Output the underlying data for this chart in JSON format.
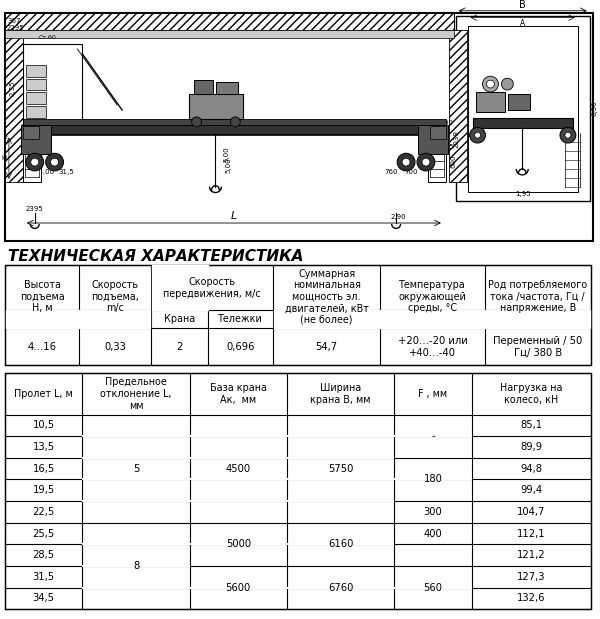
{
  "title": "ТЕХНИЧЕСКАЯ ХАРАКТЕРИСТИКА",
  "table1_headers_row1": [
    "Высота\nподъема\nН, м",
    "Скорость\nподъема,\nm/с",
    "Скорость\nпередвижения, м/с",
    "",
    "Суммарная\nноминальная\nмощность эл.\nдвигателей, кВт\n(не более)",
    "Температура\nокружающей\nсреды, °С",
    "Род потребляемого\nтока /частота, Гц /\nнапряжение, В"
  ],
  "table1_subheaders": [
    "Крана",
    "Тележки"
  ],
  "table1_data": [
    "4…16",
    "0,33",
    "2",
    "0,696",
    "54,7",
    "+20…-20 или\n+40…-40",
    "Переменный / 50\nГц/ 380 В"
  ],
  "table2_headers": [
    "Пролет L, м",
    "Предельное\nотклонение L,\nмм",
    "База крана\nАк,  мм",
    "Ширина\nкрана В, мм",
    "F , мм",
    "Нагрузка на\nколесо, кН"
  ],
  "prolety": [
    "10,5",
    "13,5",
    "16,5",
    "19,5",
    "22,5",
    "25,5",
    "28,5",
    "31,5",
    "34,5"
  ],
  "nagruzka": [
    "85,1",
    "89,9",
    "94,8",
    "99,4",
    "104,7",
    "112,1",
    "121,2",
    "127,3",
    "132,6"
  ],
  "predel_merge": [
    {
      "val": "5",
      "r0": 0,
      "r1": 4
    },
    {
      "val": "8",
      "r0": 5,
      "r1": 8
    }
  ],
  "baza_merge": [
    {
      "val": "4500",
      "r0": 0,
      "r1": 4
    },
    {
      "val": "5000",
      "r0": 5,
      "r1": 6
    },
    {
      "val": "5600",
      "r0": 7,
      "r1": 8
    }
  ],
  "shir_merge": [
    {
      "val": "5750",
      "r0": 0,
      "r1": 4
    },
    {
      "val": "6160",
      "r0": 5,
      "r1": 6
    },
    {
      "val": "6760",
      "r0": 7,
      "r1": 8
    }
  ],
  "f_merge": [
    {
      "val": "-",
      "r0": 0,
      "r1": 1
    },
    {
      "val": "180",
      "r0": 2,
      "r1": 3
    },
    {
      "val": "300",
      "r0": 4,
      "r1": 4
    },
    {
      "val": "400",
      "r0": 5,
      "r1": 5
    },
    {
      "val": "",
      "r0": 6,
      "r1": 6
    },
    {
      "val": "560",
      "r0": 7,
      "r1": 8
    }
  ],
  "bg_color": "#ffffff",
  "lc": "#000000",
  "tc": "#000000",
  "fs": 7.2,
  "title_fs": 11
}
